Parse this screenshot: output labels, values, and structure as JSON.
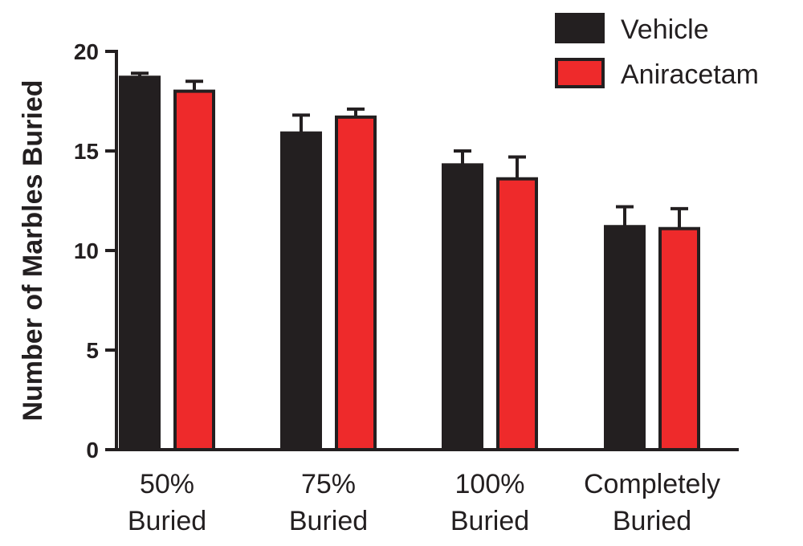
{
  "chart_data": {
    "type": "bar",
    "title": "",
    "xlabel": "",
    "ylabel": "Number of Marbles Buried",
    "ylim": [
      0,
      20
    ],
    "yticks": [
      0,
      5,
      10,
      15,
      20
    ],
    "categories": [
      [
        "50%",
        "Buried"
      ],
      [
        "75%",
        "Buried"
      ],
      [
        "100%",
        "Buried"
      ],
      [
        "Completely",
        "Buried"
      ]
    ],
    "series": [
      {
        "name": "Vehicle",
        "color": "#231f20",
        "values": [
          18.7,
          15.9,
          14.3,
          11.2
        ],
        "errors": [
          0.2,
          0.9,
          0.7,
          1.0
        ]
      },
      {
        "name": "Aniracetam",
        "color": "#ee2a2b",
        "values": [
          18.0,
          16.7,
          13.6,
          11.1
        ],
        "errors": [
          0.5,
          0.4,
          1.1,
          1.0
        ]
      }
    ],
    "legend_position": "top-right",
    "grid": false
  }
}
